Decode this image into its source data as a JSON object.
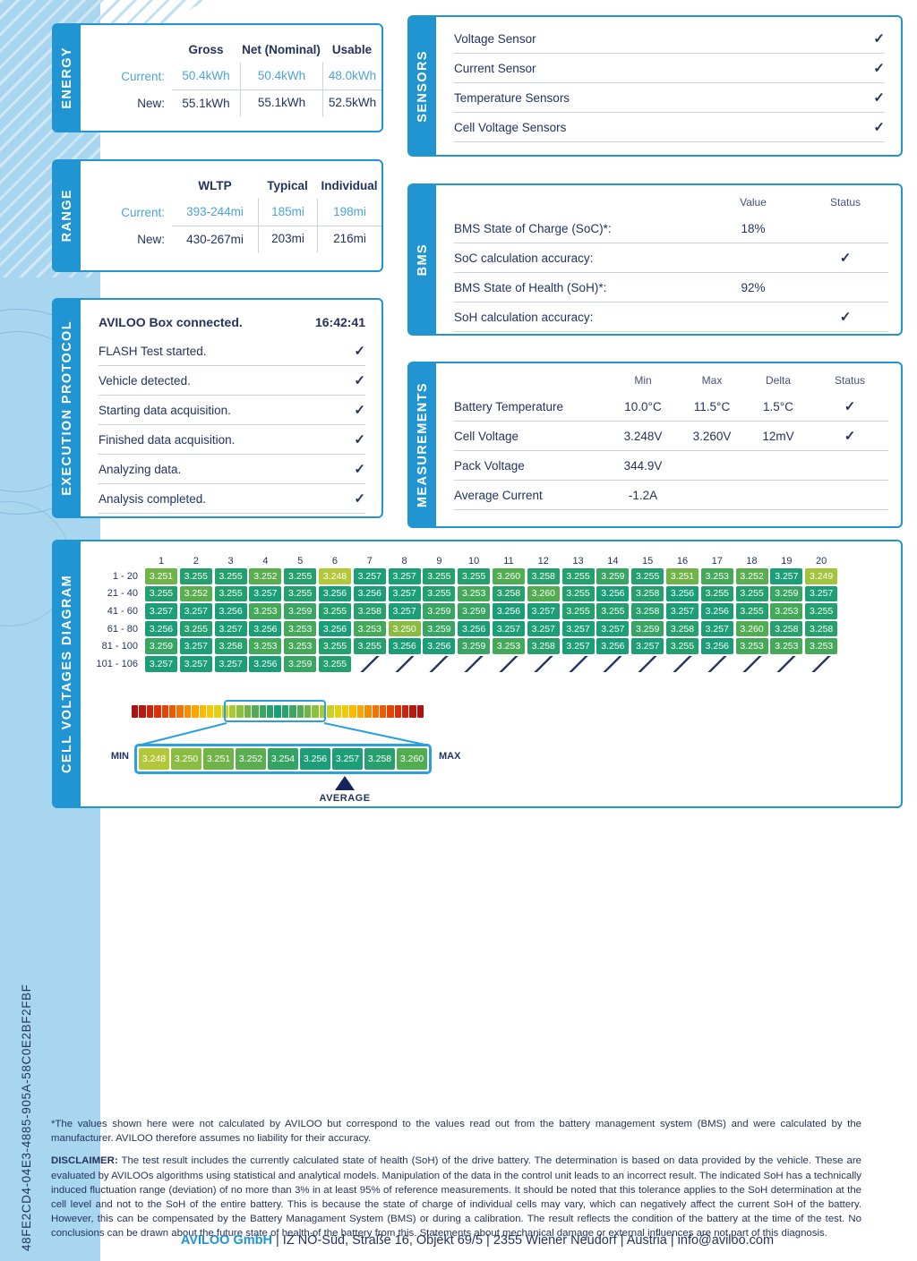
{
  "sidebar_id": "48FE2CD4-04E3-4885-905A-58C0E2BF2FBF",
  "colors": {
    "accent_blue": "#2095d2",
    "highlight_blue": "#2aa0dc",
    "light_blue_text": "#4aa4da",
    "navy_text": "#22335f",
    "band_blue": "#a9d6ef"
  },
  "energy": {
    "title": "ENERGY",
    "headers": [
      "Gross",
      "Net (Nominal)",
      "Usable"
    ],
    "rows": [
      {
        "label": "Current:",
        "values": [
          "50.4kWh",
          "50.4kWh",
          "48.0kWh"
        ],
        "highlight": true
      },
      {
        "label": "New:",
        "values": [
          "55.1kWh",
          "55.1kWh",
          "52.5kWh"
        ],
        "highlight": false
      }
    ]
  },
  "range": {
    "title": "RANGE",
    "headers": [
      "WLTP",
      "Typical",
      "Individual"
    ],
    "rows": [
      {
        "label": "Current:",
        "values": [
          "393-244mi",
          "185mi",
          "198mi"
        ],
        "highlight": true
      },
      {
        "label": "New:",
        "values": [
          "430-267mi",
          "203mi",
          "216mi"
        ],
        "highlight": false
      }
    ]
  },
  "sensors": {
    "title": "SENSORS",
    "items": [
      {
        "label": "Voltage Sensor",
        "check": true
      },
      {
        "label": "Current Sensor",
        "check": true
      },
      {
        "label": "Temperature Sensors",
        "check": true
      },
      {
        "label": "Cell Voltage Sensors",
        "check": true
      }
    ]
  },
  "execution_protocol": {
    "title": "EXECUTION PROTOCOL",
    "rows": [
      {
        "label": "AVILOO Box connected.",
        "time": "16:42:41"
      },
      {
        "label": "FLASH Test started.",
        "check": true
      },
      {
        "label": "Vehicle detected.",
        "check": true
      },
      {
        "label": "Starting data acquisition.",
        "check": true
      },
      {
        "label": "Finished data acquisition.",
        "check": true
      },
      {
        "label": "Analyzing data.",
        "check": true
      },
      {
        "label": "Analysis completed.",
        "check": true
      }
    ]
  },
  "bms": {
    "title": "BMS",
    "col_headers": [
      "Value",
      "Status"
    ],
    "rows": [
      {
        "label": "BMS State of Charge (SoC)*:",
        "value": "18%",
        "check": false
      },
      {
        "label": "SoC calculation accuracy:",
        "value": "",
        "check": true
      },
      {
        "label": "BMS State of Health (SoH)*:",
        "value": "92%",
        "check": false
      },
      {
        "label": "SoH calculation accuracy:",
        "value": "",
        "check": true
      }
    ]
  },
  "measurements": {
    "title": "MEASUREMENTS",
    "col_headers": [
      "Min",
      "Max",
      "Delta",
      "Status"
    ],
    "rows": [
      {
        "label": "Battery Temperature",
        "min": "10.0°C",
        "max": "11.5°C",
        "delta": "1.5°C",
        "check": true
      },
      {
        "label": "Cell Voltage",
        "min": "3.248V",
        "max": "3.260V",
        "delta": "12mV",
        "check": true
      },
      {
        "label": "Pack Voltage",
        "min": "344.9V",
        "max": "",
        "delta": "",
        "check": false
      },
      {
        "label": "Average Current",
        "min": "-1.2A",
        "max": "",
        "delta": "",
        "check": false
      }
    ]
  },
  "cell_voltages": {
    "title": "CELL VOLTAGES DIAGRAM",
    "col_numbers": [
      "1",
      "2",
      "3",
      "4",
      "5",
      "6",
      "7",
      "8",
      "9",
      "10",
      "11",
      "12",
      "13",
      "14",
      "15",
      "16",
      "17",
      "18",
      "19",
      "20"
    ],
    "rows": [
      {
        "label": "1 - 20",
        "values": [
          "3.251",
          "3.255",
          "3.255",
          "3.252",
          "3.255",
          "3.248",
          "3.257",
          "3.257",
          "3.255",
          "3.255",
          "3.260",
          "3.258",
          "3.255",
          "3.259",
          "3.255",
          "3.251",
          "3.253",
          "3.252",
          "3.257",
          "3.249"
        ]
      },
      {
        "label": "21 - 40",
        "values": [
          "3.255",
          "3.252",
          "3.255",
          "3.257",
          "3.255",
          "3.256",
          "3.256",
          "3.257",
          "3.255",
          "3.253",
          "3.258",
          "3.260",
          "3.255",
          "3.256",
          "3.258",
          "3.256",
          "3.255",
          "3.255",
          "3.259",
          "3.257"
        ]
      },
      {
        "label": "41 - 60",
        "values": [
          "3.257",
          "3.257",
          "3.256",
          "3.253",
          "3.259",
          "3.255",
          "3.258",
          "3.257",
          "3.259",
          "3.259",
          "3.256",
          "3.257",
          "3.255",
          "3.255",
          "3.258",
          "3.257",
          "3.256",
          "3.255",
          "3.253",
          "3.255"
        ]
      },
      {
        "label": "61 - 80",
        "values": [
          "3.256",
          "3.255",
          "3.257",
          "3.256",
          "3.253",
          "3.256",
          "3.253",
          "3.250",
          "3.259",
          "3.256",
          "3.257",
          "3.257",
          "3.257",
          "3.257",
          "3.259",
          "3.258",
          "3.257",
          "3.260",
          "3.258",
          "3.258"
        ]
      },
      {
        "label": "81 - 100",
        "values": [
          "3.259",
          "3.257",
          "3.258",
          "3.253",
          "3.253",
          "3.255",
          "3.255",
          "3.256",
          "3.256",
          "3.259",
          "3.253",
          "3.258",
          "3.257",
          "3.256",
          "3.257",
          "3.255",
          "3.256",
          "3.253",
          "3.253",
          "3.253"
        ]
      },
      {
        "label": "101 - 106",
        "values": [
          "3.257",
          "3.257",
          "3.257",
          "3.256",
          "3.259",
          "3.255"
        ]
      }
    ],
    "colormap": {
      "3.248": "#b3c839",
      "3.249": "#a2c33d",
      "3.250": "#8abc42",
      "3.251": "#70b449",
      "3.252": "#5aae4f",
      "3.253": "#45a95a",
      "3.254": "#34a465",
      "3.255": "#24a06f",
      "3.256": "#1b9e77",
      "3.257": "#1c9e76",
      "3.258": "#28a06e",
      "3.259": "#38a562",
      "3.260": "#52ac52"
    },
    "gradient": [
      "#ad1210",
      "#bc170e",
      "#cb230c",
      "#d93109",
      "#e44507",
      "#ed5a05",
      "#f37304",
      "#f78d03",
      "#f9a603",
      "#f9ba04",
      "#f3ca07",
      "#e2d113",
      "#c9d124",
      "#abc934",
      "#8cc03f",
      "#6db549",
      "#52ac52",
      "#3aa65f",
      "#28a16c",
      "#1b9e77",
      "#28a16c",
      "#3aa65f",
      "#52ac52",
      "#6db549",
      "#8cc03f",
      "#abc934",
      "#c9d124",
      "#e2d113",
      "#f3ca07",
      "#f9ba04",
      "#f9a603",
      "#f78d03",
      "#f37304",
      "#ed5a05",
      "#e44507",
      "#d93109",
      "#cb230c",
      "#bc170e",
      "#ad1210"
    ],
    "min_label": "MIN",
    "max_label": "MAX",
    "average_label": "AVERAGE",
    "detail_values": [
      "3.248",
      "3.250",
      "3.251",
      "3.252",
      "3.254",
      "3.256",
      "3.257",
      "3.258",
      "3.260"
    ]
  },
  "footer": {
    "note": "*The values shown here were not calculated by AVILOO but correspond to the values read out from the battery management system (BMS) and were calculated by the manufacturer. AVILOO therefore assumes no liability for their accuracy.",
    "disclaimer_label": "DISCLAIMER:",
    "disclaimer": " The test result includes the currently calculated state of health (SoH) of the drive battery. The determination is based on data provided by the vehicle. These are evaluated by AVILOOs algorithms using statistical and analytical models. Manipulation of the data in the control unit leads to an incorrect result. The indicated SoH has a technically induced fluctuation range (deviation) of no more than 3% in at least 95% of reference measurements. It should be noted that this tolerance applies to the SoH determination at the cell level and not to the SoH of the entire battery. This is because the state of charge of individual cells may vary, which can negatively affect the current SoH of the battery. However, this can be compensated by the Battery Managament System (BMS) or during a calibration. The result reflects the condition of the battery at the time of the test. No conclusions can be drawn about the future state of health of the battery from this. Statements about mechanical damage or external influences are not part of this diagnosis.",
    "company_name": "AVILOO GmbH",
    "company_rest": " | IZ NÖ-Süd, Straße 16, Objekt 69/5 | 2355 Wiener Neudorf | Austria | info@aviloo.com"
  }
}
